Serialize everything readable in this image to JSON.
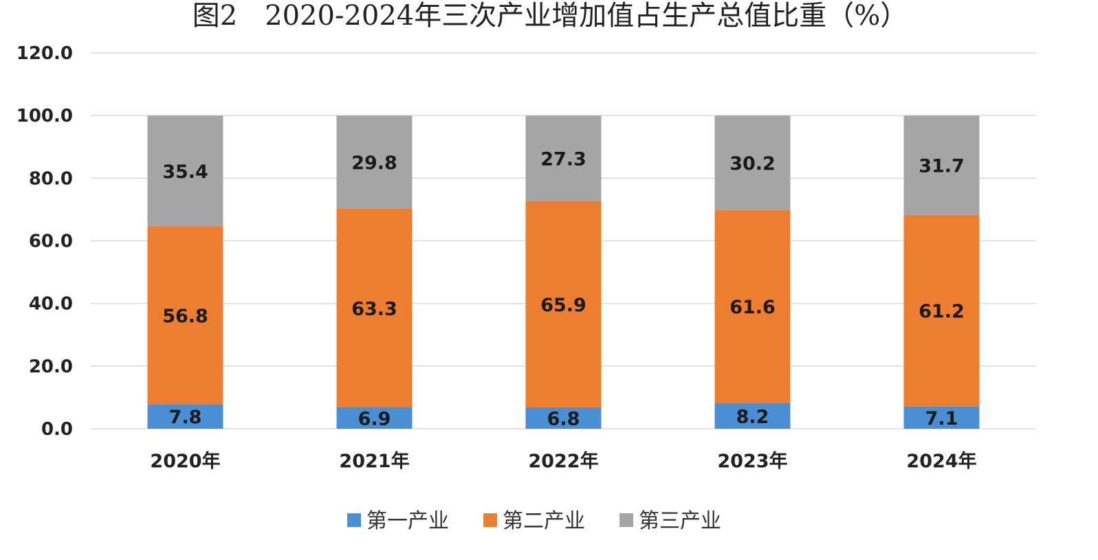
{
  "chart_data": {
    "type": "bar",
    "stacked": true,
    "title": "图2　2020-2024年三次产业增加值占生产总值比重（%）",
    "categories": [
      "2020年",
      "2021年",
      "2022年",
      "2023年",
      "2024年"
    ],
    "series": [
      {
        "name": "第一产业",
        "values": [
          7.8,
          6.9,
          6.8,
          8.2,
          7.1
        ],
        "color": "#4a8fd4"
      },
      {
        "name": "第二产业",
        "values": [
          56.8,
          63.3,
          65.9,
          61.6,
          61.2
        ],
        "color": "#ed7d31"
      },
      {
        "name": "第三产业",
        "values": [
          35.4,
          29.8,
          27.3,
          30.2,
          31.7
        ],
        "color": "#a5a5a5"
      }
    ],
    "data_labels": [
      [
        "7.8",
        "6.9",
        "6.8",
        "8.2",
        "7.1"
      ],
      [
        "56.8",
        "63.3",
        "65.9",
        "61.6",
        "61.2"
      ],
      [
        "35.4",
        "29.8",
        "27.3",
        "30.2",
        "31.7"
      ]
    ],
    "ylim": [
      0,
      120
    ],
    "yticks": [
      0,
      20,
      40,
      60,
      80,
      100,
      120
    ],
    "ytick_labels": [
      "0.0",
      "20.0",
      "40.0",
      "60.0",
      "80.0",
      "100.0",
      "120.0"
    ],
    "grid": true,
    "legend_position": "bottom"
  }
}
